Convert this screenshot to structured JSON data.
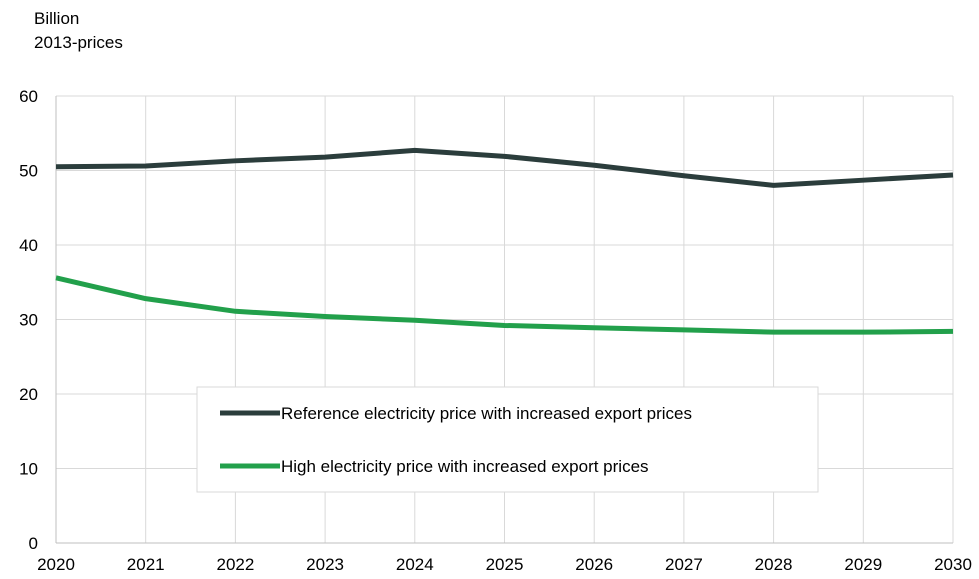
{
  "chart_data": {
    "type": "line",
    "ylabel": [
      "Billion",
      "2013-prices"
    ],
    "xlabel": "",
    "x": [
      2020,
      2021,
      2022,
      2023,
      2024,
      2025,
      2026,
      2027,
      2028,
      2029,
      2030
    ],
    "xlim": [
      2020,
      2030
    ],
    "ylim": [
      0,
      60
    ],
    "yticks": [
      0,
      10,
      20,
      30,
      40,
      50,
      60
    ],
    "grid": "vertical and horizontal",
    "legend_position": "lower-center",
    "series": [
      {
        "name": "Reference electricity price with increased export prices",
        "color": "#2b3d3c",
        "values": [
          50.5,
          50.6,
          51.3,
          51.8,
          52.7,
          51.9,
          50.7,
          49.3,
          48.0,
          48.7,
          49.4
        ]
      },
      {
        "name": "High electricity price with increased export prices",
        "color": "#22a04b",
        "values": [
          35.6,
          32.8,
          31.1,
          30.4,
          29.9,
          29.2,
          28.9,
          28.6,
          28.3,
          28.3,
          28.4
        ]
      }
    ]
  }
}
